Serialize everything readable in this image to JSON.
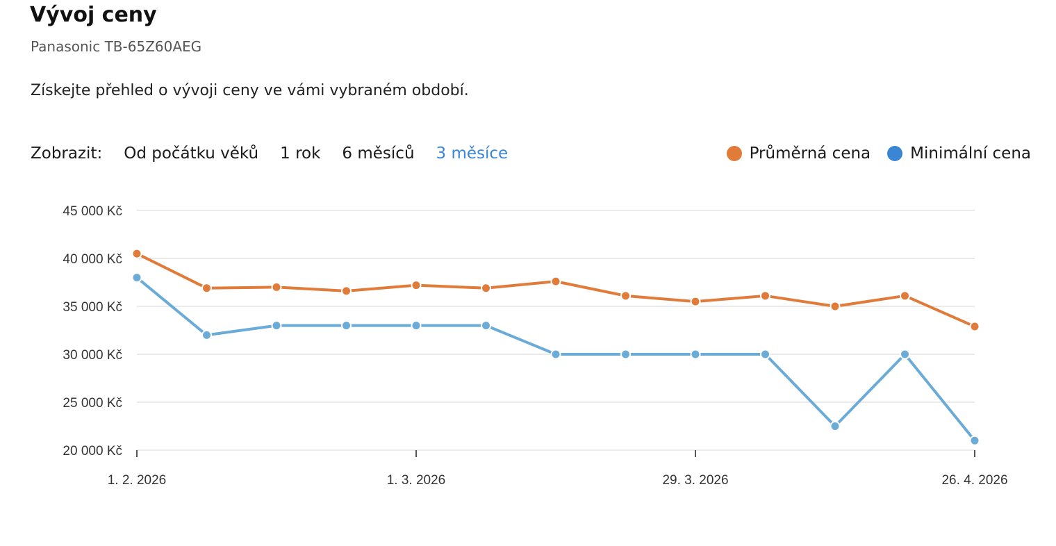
{
  "header": {
    "title": "Vývoj ceny",
    "subtitle": "Panasonic TB-65Z60AEG",
    "description": "Získejte přehled o vývoji ceny ve vámi vybraném období."
  },
  "range_selector": {
    "label": "Zobrazit:",
    "options": [
      {
        "label": "Od počátku věků",
        "active": false
      },
      {
        "label": "1 rok",
        "active": false
      },
      {
        "label": "6 měsíců",
        "active": false
      },
      {
        "label": "3 měsíce",
        "active": true
      }
    ],
    "active_color": "#3b86d4"
  },
  "chart_data": {
    "type": "line",
    "title": "",
    "xlabel": "",
    "ylabel": "",
    "x": [
      "2026-02-01",
      "2026-02-08",
      "2026-02-15",
      "2026-02-22",
      "2026-03-01",
      "2026-03-08",
      "2026-03-15",
      "2026-03-22",
      "2026-03-29",
      "2026-04-05",
      "2026-04-12",
      "2026-04-19",
      "2026-04-26"
    ],
    "x_tick_labels": [
      "1. 2. 2026",
      "1. 3. 2026",
      "29. 3. 2026",
      "26. 4. 2026"
    ],
    "x_tick_indices": [
      0,
      4,
      8,
      12
    ],
    "y_tick_labels": [
      "45 000 Kč",
      "40 000 Kč",
      "35 000 Kč",
      "30 000 Kč",
      "25 000 Kč",
      "20 000 Kč"
    ],
    "y_ticks": [
      45000,
      40000,
      35000,
      30000,
      25000,
      20000
    ],
    "ylim": [
      20000,
      45000
    ],
    "grid": true,
    "legend_position": "top-right",
    "series": [
      {
        "name": "Průměrná cena",
        "color": "#e07b39",
        "values": [
          40500,
          36900,
          37000,
          36600,
          37200,
          36900,
          37600,
          36100,
          35500,
          36100,
          35000,
          36100,
          32900
        ]
      },
      {
        "name": "Minimální cena",
        "color": "#6aabd8",
        "legend_color": "#3b86d4",
        "values": [
          38000,
          32000,
          33000,
          33000,
          33000,
          33000,
          30000,
          30000,
          30000,
          30000,
          22500,
          30000,
          21000
        ]
      }
    ]
  }
}
